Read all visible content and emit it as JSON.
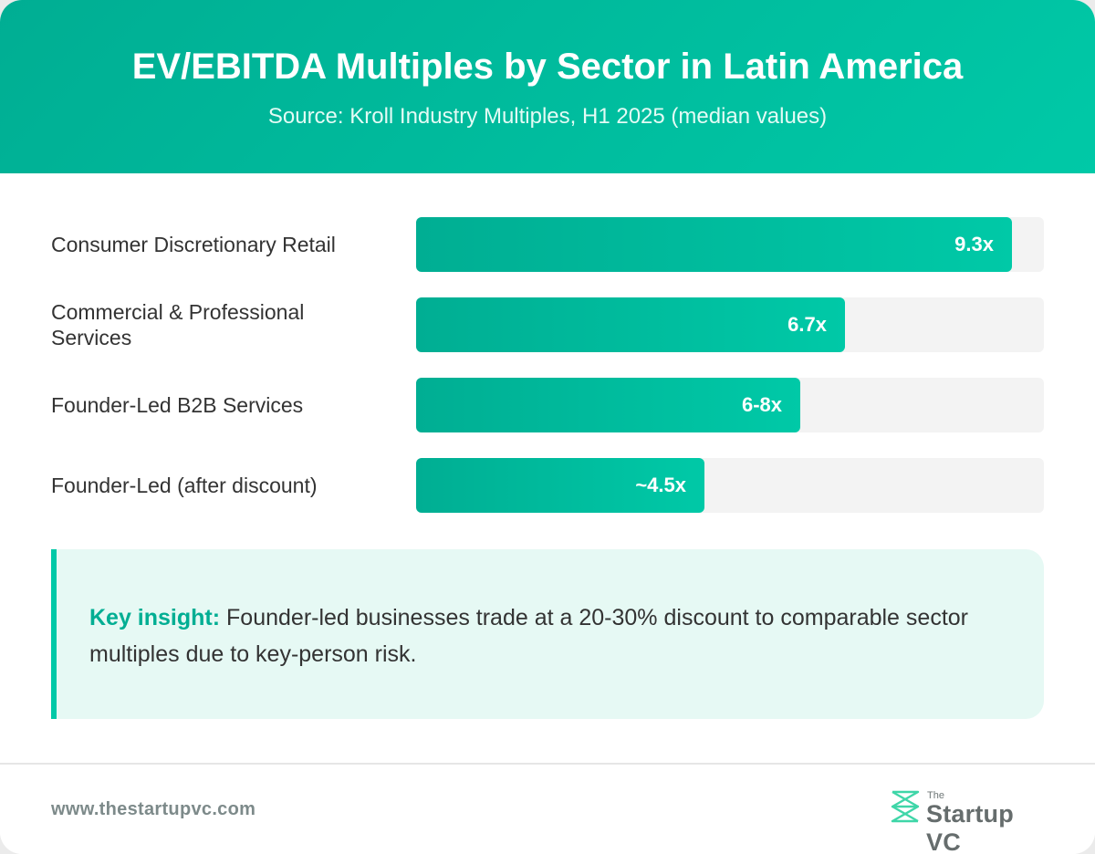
{
  "header": {
    "title": "EV/EBITDA Multiples by Sector in Latin America",
    "subtitle": "Source: Kroll Industry Multiples, H1 2025 (median values)"
  },
  "chart_data": {
    "type": "bar",
    "orientation": "horizontal",
    "title": "EV/EBITDA Multiples by Sector in Latin America",
    "subtitle": "Source: Kroll Industry Multiples, H1 2025 (median values)",
    "categories": [
      "Consumer Discretionary Retail",
      "Commercial & Professional Services",
      "Founder-Led B2B Services",
      "Founder-Led (after discount)"
    ],
    "values": [
      9.3,
      6.7,
      6.0,
      4.5
    ],
    "value_labels": [
      "9.3x",
      "6.7x",
      "6-8x",
      "~4.5x"
    ],
    "xlim": [
      0,
      9.8
    ],
    "grid": false,
    "legend": "none",
    "colors": {
      "bar": "#00c9a7",
      "bar_dark": "#00ae93",
      "track": "#f3f3f3"
    }
  },
  "insight": {
    "lead": "Key insight:",
    "text": " Founder-led businesses trade at a 20-30% discount to comparable sector multiples due to key-person risk."
  },
  "footer": {
    "url": "www.thestartupvc.com",
    "logo_small": "The",
    "logo_name": "Startup VC",
    "logo_icon": "startup-vc-logo-icon"
  },
  "colors": {
    "accent": "#00c9a7",
    "accent_dark": "#00ae93",
    "insight_bg": "#e6f9f4",
    "text": "#333333"
  }
}
